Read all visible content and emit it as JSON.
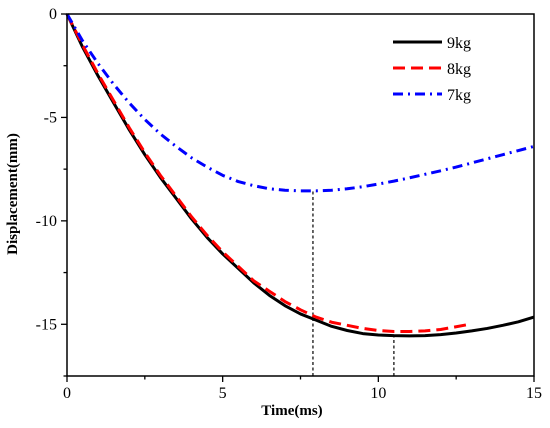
{
  "chart_data": {
    "type": "line",
    "title": "",
    "xlabel": "Time(ms)",
    "ylabel": "Displacement(mm)",
    "xlim": [
      0,
      15
    ],
    "ylim": [
      -17.5,
      0
    ],
    "xticks": [
      0,
      5,
      10,
      15
    ],
    "yticks": [
      0,
      -5,
      -10,
      -15
    ],
    "grid": false,
    "legend_position": "top-right",
    "series": [
      {
        "name": "9kg",
        "color": "#000000",
        "style": "solid",
        "x": [
          0,
          0.5,
          1,
          1.5,
          2,
          2.5,
          3,
          3.5,
          4,
          4.5,
          5,
          5.5,
          6,
          6.5,
          7,
          7.5,
          8,
          8.5,
          9,
          9.5,
          10,
          10.5,
          11,
          11.5,
          12,
          12.5,
          13,
          13.5,
          14,
          14.5,
          15
        ],
        "y": [
          0,
          -1.6,
          -3.0,
          -4.3,
          -5.6,
          -6.8,
          -7.9,
          -8.9,
          -9.9,
          -10.8,
          -11.6,
          -12.3,
          -13.0,
          -13.6,
          -14.1,
          -14.5,
          -14.8,
          -15.1,
          -15.3,
          -15.45,
          -15.52,
          -15.55,
          -15.56,
          -15.55,
          -15.5,
          -15.42,
          -15.32,
          -15.2,
          -15.05,
          -14.88,
          -14.65
        ]
      },
      {
        "name": "8kg",
        "color": "#ff0000",
        "style": "dashed",
        "x": [
          0,
          0.5,
          1,
          1.5,
          2,
          2.5,
          3,
          3.5,
          4,
          4.5,
          5,
          5.5,
          6,
          6.5,
          7,
          7.5,
          8,
          8.5,
          9,
          9.5,
          10,
          10.5,
          11,
          11.5,
          12,
          12.5,
          13
        ],
        "y": [
          0,
          -1.5,
          -2.9,
          -4.2,
          -5.5,
          -6.7,
          -7.8,
          -8.8,
          -9.8,
          -10.7,
          -11.5,
          -12.2,
          -12.9,
          -13.4,
          -13.9,
          -14.3,
          -14.65,
          -14.9,
          -15.05,
          -15.2,
          -15.3,
          -15.35,
          -15.35,
          -15.32,
          -15.25,
          -15.12,
          -14.98
        ]
      },
      {
        "name": "7kg",
        "color": "#0000ff",
        "style": "dash-dot",
        "x": [
          0,
          0.5,
          1,
          1.5,
          2,
          2.5,
          3,
          3.5,
          4,
          4.5,
          5,
          5.5,
          6,
          6.5,
          7,
          7.5,
          8,
          8.5,
          9,
          9.5,
          10,
          10.5,
          11,
          11.5,
          12,
          12.5,
          13,
          13.5,
          14,
          14.5,
          15
        ],
        "y": [
          0,
          -1.3,
          -2.4,
          -3.4,
          -4.3,
          -5.1,
          -5.8,
          -6.4,
          -6.95,
          -7.4,
          -7.8,
          -8.1,
          -8.3,
          -8.45,
          -8.52,
          -8.55,
          -8.55,
          -8.52,
          -8.45,
          -8.35,
          -8.22,
          -8.08,
          -7.92,
          -7.75,
          -7.58,
          -7.4,
          -7.2,
          -7.0,
          -6.8,
          -6.6,
          -6.4
        ]
      }
    ],
    "annotations": [
      {
        "type": "vertical-dashed",
        "x": 7.9,
        "y_from": -17.5,
        "y_to": -8.55
      },
      {
        "type": "vertical-dashed",
        "x": 10.5,
        "y_from": -17.5,
        "y_to": -15.55
      }
    ]
  }
}
